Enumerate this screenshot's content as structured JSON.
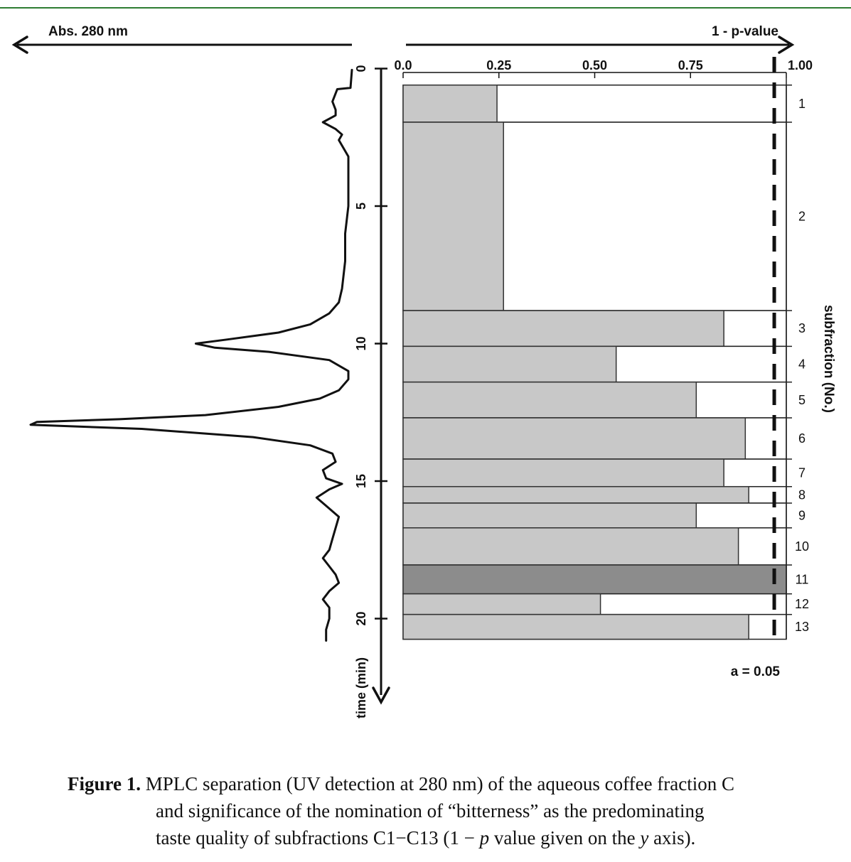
{
  "chart_data": {
    "type": "bar",
    "orientation": "horizontal",
    "left_panel": {
      "type": "line",
      "label": "Abs. 280  nm",
      "time_axis": {
        "label": "time (min)",
        "ticks": [
          "0",
          "5",
          "10",
          "15",
          "20"
        ],
        "range": [
          0,
          23.5
        ]
      },
      "trace": {
        "time": [
          1.7,
          1.95,
          2.2,
          2.4,
          2.6,
          3.2,
          4.0,
          5.0,
          6.0,
          7.0,
          8.0,
          8.5,
          8.9,
          9.3,
          9.6,
          9.85,
          10.0,
          10.15,
          10.3,
          10.6,
          11.0,
          11.3,
          11.7,
          12.0,
          12.3,
          12.6,
          12.75,
          12.85,
          12.95,
          13.1,
          13.4,
          13.7,
          14.0,
          14.3,
          14.6,
          14.9,
          15.1,
          15.3,
          15.6,
          15.9,
          16.3,
          16.7,
          17.1,
          17.5,
          17.8,
          18.1,
          18.4,
          18.7,
          19.0,
          19.3,
          19.6,
          20.0,
          20.4,
          20.8
        ],
        "absorbance": [
          0.04,
          0.08,
          0.04,
          0.02,
          0.03,
          0.0,
          0.0,
          0.0,
          0.01,
          0.01,
          0.02,
          0.03,
          0.06,
          0.12,
          0.22,
          0.38,
          0.48,
          0.42,
          0.25,
          0.06,
          0.0,
          0.0,
          0.03,
          0.09,
          0.22,
          0.45,
          0.72,
          0.98,
          1.0,
          0.65,
          0.3,
          0.12,
          0.05,
          0.04,
          0.08,
          0.07,
          0.02,
          0.06,
          0.1,
          0.07,
          0.03,
          0.04,
          0.05,
          0.06,
          0.08,
          0.06,
          0.04,
          0.03,
          0.06,
          0.08,
          0.06,
          0.06,
          0.07,
          0.07
        ]
      }
    },
    "x_axis": {
      "label": "1 - p-value",
      "ticks": [
        "0.0",
        "0.25",
        "0.50",
        "0.75",
        "1.00"
      ],
      "range": [
        0,
        1
      ]
    },
    "y_axis": {
      "label": "subfraction (No.)"
    },
    "significance": {
      "label": "a = 0.05",
      "value": 0.95
    },
    "colors": {
      "bar": "#c8c8c8",
      "highlight": "#8c8c8c",
      "line": "#111111"
    },
    "bars": [
      {
        "subfraction": "1",
        "value": 0.245,
        "start_min": 0.6,
        "end_min": 1.95
      },
      {
        "subfraction": "2",
        "value": 0.262,
        "start_min": 1.95,
        "end_min": 8.8
      },
      {
        "subfraction": "3",
        "value": 0.837,
        "start_min": 8.8,
        "end_min": 10.1
      },
      {
        "subfraction": "4",
        "value": 0.556,
        "start_min": 10.1,
        "end_min": 11.4
      },
      {
        "subfraction": "5",
        "value": 0.765,
        "start_min": 11.4,
        "end_min": 12.7
      },
      {
        "subfraction": "6",
        "value": 0.893,
        "start_min": 12.7,
        "end_min": 14.2
      },
      {
        "subfraction": "7",
        "value": 0.837,
        "start_min": 14.2,
        "end_min": 15.2
      },
      {
        "subfraction": "8",
        "value": 0.902,
        "start_min": 15.2,
        "end_min": 15.8
      },
      {
        "subfraction": "9",
        "value": 0.765,
        "start_min": 15.8,
        "end_min": 16.7
      },
      {
        "subfraction": "10",
        "value": 0.875,
        "start_min": 16.7,
        "end_min": 18.05
      },
      {
        "subfraction": "11",
        "value": 1.0,
        "start_min": 18.05,
        "end_min": 19.1,
        "highlight": true
      },
      {
        "subfraction": "12",
        "value": 0.515,
        "start_min": 19.1,
        "end_min": 19.85
      },
      {
        "subfraction": "13",
        "value": 0.902,
        "start_min": 19.85,
        "end_min": 20.75
      }
    ]
  },
  "caption": {
    "label": "Figure 1.",
    "line1": " MPLC separation (UV detection at 280 nm) of the aqueous coffee fraction C",
    "line2": "and significance of the nomination of “bitterness” as the  predominating",
    "line3a": "taste quality of subfractions C1−C13 (1 − ",
    "line3p": "p",
    "line3b": " value given on the ",
    "line3y": "y",
    "line3c": " axis)."
  }
}
